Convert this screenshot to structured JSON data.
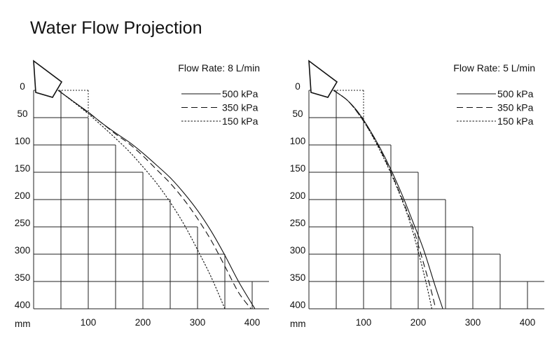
{
  "page": {
    "title": "Water Flow Projection"
  },
  "chart_data": [
    {
      "type": "line",
      "flow_rate_label": "Flow Rate: 8 L/min",
      "unit_label": "mm",
      "x_ticks": [
        100,
        200,
        300,
        400
      ],
      "y_ticks": [
        0,
        50,
        100,
        150,
        200,
        250,
        300,
        350,
        400
      ],
      "xlim": [
        0,
        400
      ],
      "ylim": [
        0,
        400
      ],
      "y_inverted": true,
      "legend_position": "top-right",
      "series": [
        {
          "name": "500 kPa",
          "style": "solid",
          "x": [
            45,
            75,
            100,
            125,
            150,
            175,
            200,
            225,
            250,
            275,
            300,
            325,
            350,
            375,
            405
          ],
          "y": [
            0,
            22,
            40,
            60,
            78,
            95,
            115,
            137,
            160,
            188,
            220,
            258,
            302,
            350,
            400
          ]
        },
        {
          "name": "350 kPa",
          "style": "dashed",
          "x": [
            45,
            75,
            100,
            125,
            150,
            175,
            200,
            225,
            250,
            275,
            300,
            325,
            350,
            375,
            398
          ],
          "y": [
            0,
            22,
            41,
            60,
            80,
            98,
            120,
            145,
            170,
            200,
            235,
            275,
            322,
            370,
            400
          ]
        },
        {
          "name": "150 kPa",
          "style": "dotted",
          "x": [
            45,
            75,
            100,
            125,
            150,
            175,
            200,
            225,
            250,
            275,
            300,
            325,
            350
          ],
          "y": [
            0,
            23,
            43,
            65,
            88,
            112,
            140,
            170,
            205,
            245,
            292,
            342,
            400
          ]
        }
      ]
    },
    {
      "type": "line",
      "flow_rate_label": "Flow Rate: 5 L/min",
      "unit_label": "mm",
      "x_ticks": [
        100,
        200,
        300,
        400
      ],
      "y_ticks": [
        0,
        50,
        100,
        150,
        200,
        250,
        300,
        350,
        400
      ],
      "xlim": [
        0,
        400
      ],
      "ylim": [
        0,
        400
      ],
      "y_inverted": true,
      "legend_position": "top-right",
      "series": [
        {
          "name": "500 kPa",
          "style": "solid",
          "x": [
            45,
            70,
            90,
            110,
            130,
            150,
            170,
            190,
            210,
            230,
            245
          ],
          "y": [
            0,
            18,
            40,
            70,
            105,
            145,
            190,
            240,
            292,
            355,
            400
          ]
        },
        {
          "name": "350 kPa",
          "style": "dashed",
          "x": [
            45,
            70,
            90,
            110,
            130,
            150,
            170,
            190,
            205,
            222,
            232
          ],
          "y": [
            0,
            18,
            42,
            72,
            108,
            150,
            197,
            250,
            300,
            360,
            400
          ]
        },
        {
          "name": "150 kPa",
          "style": "dotted",
          "x": [
            45,
            70,
            90,
            110,
            130,
            150,
            170,
            185,
            200,
            215,
            225
          ],
          "y": [
            0,
            18,
            42,
            73,
            110,
            152,
            200,
            242,
            295,
            355,
            400
          ]
        }
      ]
    }
  ]
}
